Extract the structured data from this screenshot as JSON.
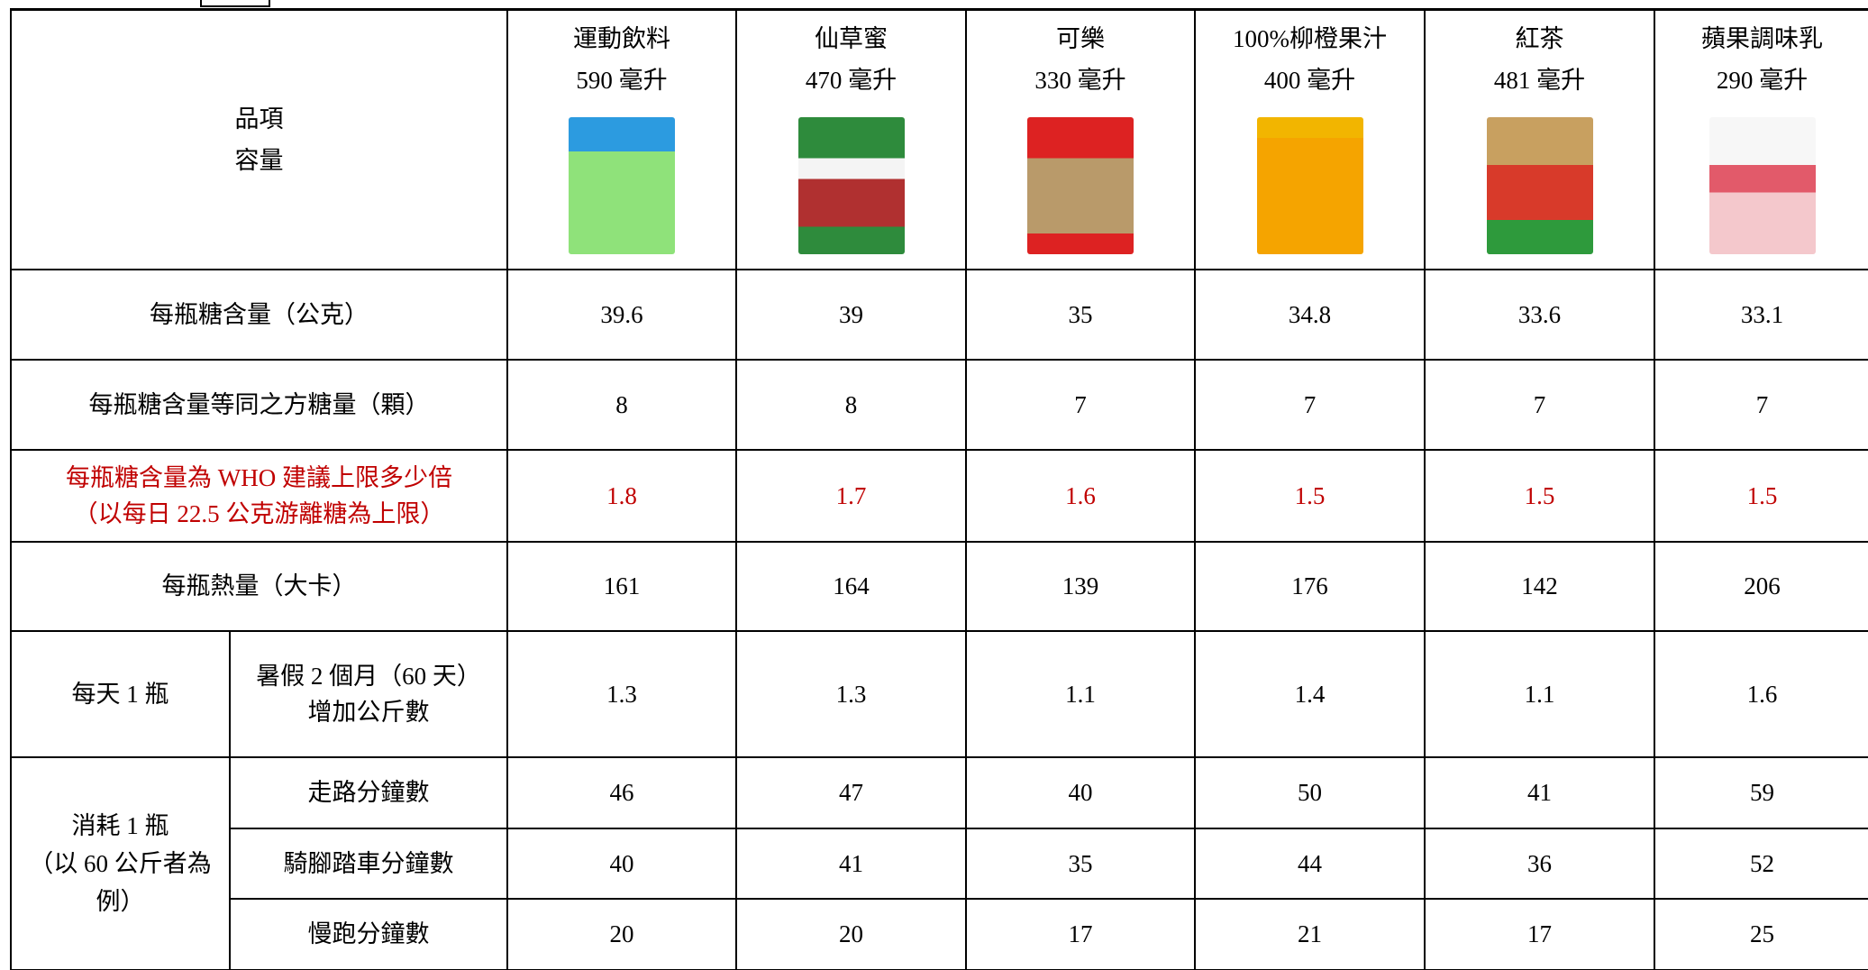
{
  "table": {
    "header": {
      "label": [
        "品項",
        "容量"
      ],
      "products": [
        {
          "name": "運動飲料",
          "volume": "590 毫升"
        },
        {
          "name": "仙草蜜",
          "volume": "470 毫升"
        },
        {
          "name": "可樂",
          "volume": "330 毫升"
        },
        {
          "name": "100%柳橙果汁",
          "volume": "400 毫升"
        },
        {
          "name": "紅茶",
          "volume": "481 毫升"
        },
        {
          "name": "蘋果調味乳",
          "volume": "290 毫升"
        }
      ]
    },
    "rows": [
      {
        "label": [
          "每瓶糖含量（公克）"
        ],
        "values": [
          39.6,
          39,
          35,
          34.8,
          33.6,
          33.1
        ]
      },
      {
        "label": [
          "每瓶糖含量等同之方糖量（顆）"
        ],
        "values": [
          8,
          8,
          7,
          7,
          7,
          7
        ]
      },
      {
        "label": [
          "每瓶糖含量為 WHO 建議上限多少倍",
          "（以每日 22.5 公克游離糖為上限）"
        ],
        "values": [
          1.8,
          1.7,
          1.6,
          1.5,
          1.5,
          1.5
        ]
      },
      {
        "label": [
          "每瓶熱量（大卡）"
        ],
        "values": [
          161,
          164,
          139,
          176,
          142,
          206
        ]
      }
    ],
    "groups": [
      {
        "label": [
          "每天 1 瓶"
        ],
        "rows": [
          {
            "label": [
              "暑假 2 個月（60 天）",
              "增加公斤數"
            ],
            "values": [
              1.3,
              1.3,
              1.1,
              1.4,
              1.1,
              1.6
            ]
          }
        ]
      },
      {
        "label": [
          "消耗 1 瓶",
          "（以 60 公斤者為例）"
        ],
        "rows": [
          {
            "label": [
              "走路分鐘數"
            ],
            "values": [
              46,
              47,
              40,
              50,
              41,
              59
            ]
          },
          {
            "label": [
              "騎腳踏車分鐘數"
            ],
            "values": [
              40,
              41,
              35,
              44,
              36,
              52
            ]
          },
          {
            "label": [
              "慢跑分鐘數"
            ],
            "values": [
              20,
              20,
              17,
              21,
              17,
              25
            ]
          }
        ]
      }
    ]
  }
}
